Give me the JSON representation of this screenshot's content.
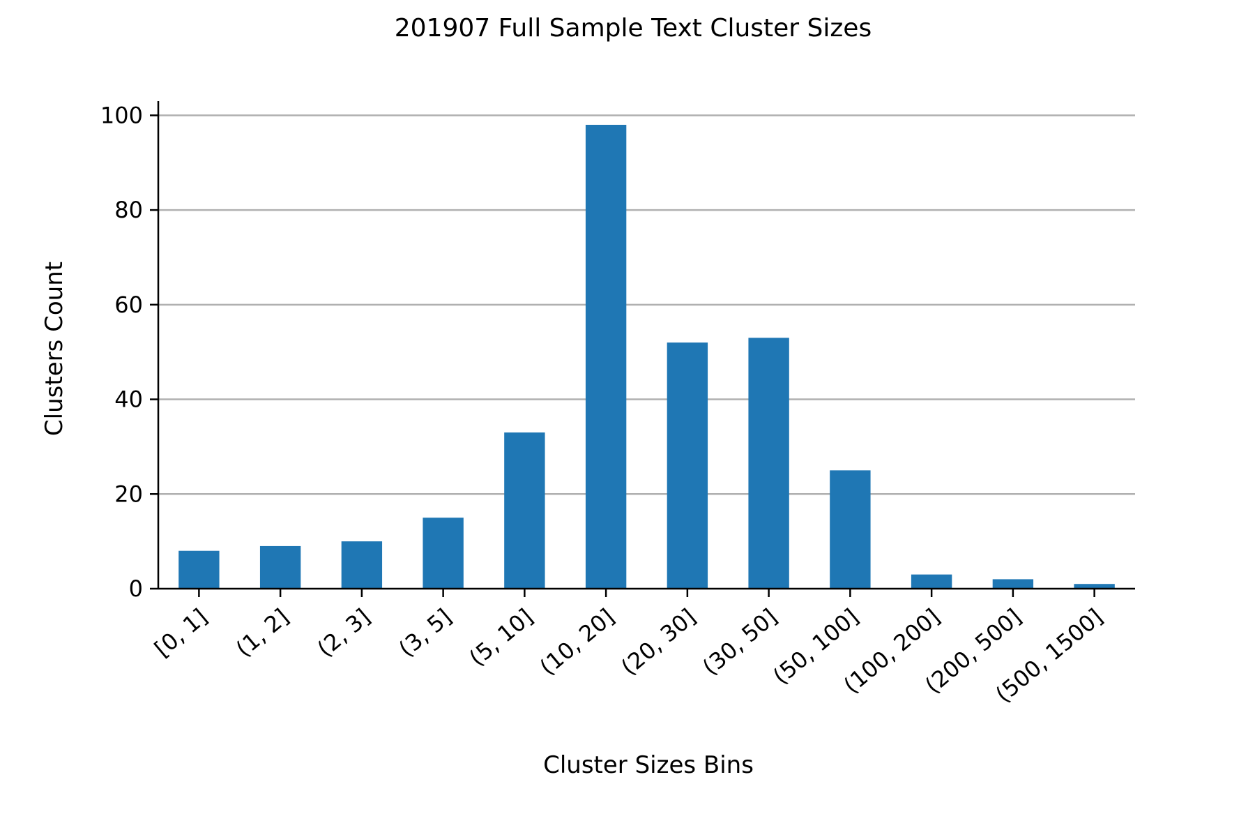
{
  "chart_data": {
    "type": "bar",
    "title": "201907 Full Sample Text Cluster Sizes",
    "xlabel": "Cluster Sizes Bins",
    "ylabel": "Clusters Count",
    "categories": [
      "[0, 1]",
      "(1, 2]",
      "(2, 3]",
      "(3, 5]",
      "(5, 10]",
      "(10, 20]",
      "(20, 30]",
      "(30, 50]",
      "(50, 100]",
      "(100, 200]",
      "(200, 500]",
      "(500, 1500]"
    ],
    "values": [
      8,
      9,
      10,
      15,
      33,
      98,
      52,
      53,
      25,
      3,
      2,
      1
    ],
    "ylim": [
      0,
      103
    ],
    "yticks": [
      0,
      20,
      40,
      60,
      80,
      100
    ],
    "grid": "horizontal",
    "legend": "none",
    "colors": {
      "bar": "#1f77b4",
      "grid": "#b0b0b0",
      "axis": "#000000"
    }
  }
}
